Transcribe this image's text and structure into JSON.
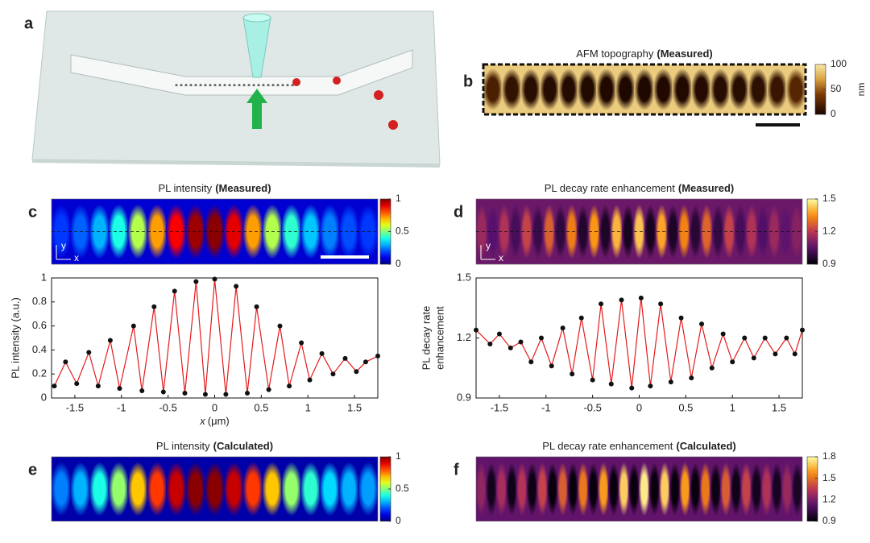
{
  "schematic": {
    "panel": "a"
  },
  "chart_data": [
    {
      "type": "heatmap",
      "panel": "b",
      "title": "AFM topography",
      "title_bold": "(Measured)",
      "colormap": "afmhot",
      "clim": [
        0,
        100
      ],
      "cticks": [
        0,
        50,
        100
      ],
      "colorbar_label": "nm",
      "background": 88,
      "values": [
        20,
        10,
        6,
        5,
        4,
        3,
        3,
        2,
        2,
        3,
        3,
        4,
        5,
        6,
        8,
        12,
        25
      ],
      "border": "dashed"
    },
    {
      "type": "heatmap",
      "panel": "c",
      "title": "PL intensity",
      "title_bold": "(Measured)",
      "colormap": "jet",
      "clim": [
        0,
        1
      ],
      "cticks": [
        0,
        0.5,
        1
      ],
      "background": 0.08,
      "values": [
        0.18,
        0.22,
        0.3,
        0.4,
        0.55,
        0.72,
        0.88,
        0.97,
        0.99,
        0.9,
        0.72,
        0.55,
        0.42,
        0.32,
        0.25,
        0.2,
        0.18
      ],
      "axes_labels": [
        "y",
        "x"
      ]
    },
    {
      "type": "line",
      "x": [
        -1.72,
        -1.6,
        -1.48,
        -1.35,
        -1.25,
        -1.12,
        -1.02,
        -0.87,
        -0.78,
        -0.65,
        -0.55,
        -0.43,
        -0.32,
        -0.2,
        -0.1,
        0,
        0.12,
        0.23,
        0.35,
        0.45,
        0.58,
        0.7,
        0.8,
        0.93,
        1.02,
        1.15,
        1.27,
        1.4,
        1.52,
        1.62,
        1.75
      ],
      "values": [
        0.1,
        0.3,
        0.12,
        0.38,
        0.1,
        0.48,
        0.08,
        0.6,
        0.06,
        0.76,
        0.05,
        0.89,
        0.04,
        0.97,
        0.03,
        0.99,
        0.03,
        0.93,
        0.04,
        0.76,
        0.07,
        0.6,
        0.1,
        0.46,
        0.15,
        0.37,
        0.2,
        0.33,
        0.22,
        0.3,
        0.35
      ],
      "color": "#e41a1c",
      "marker_color": "#111",
      "xlim": [
        -1.75,
        1.75
      ],
      "xticks": [
        -1.5,
        -1,
        -0.5,
        0,
        0.5,
        1,
        1.5
      ],
      "ylim": [
        0,
        1
      ],
      "yticks": [
        0,
        0.2,
        0.4,
        0.6,
        0.8,
        1
      ],
      "ylabel": [
        "PL intensity (a.u.)"
      ],
      "xlabel_var": "x",
      "xlabel_unit": "(μm)"
    },
    {
      "type": "heatmap",
      "panel": "d",
      "title": "PL decay rate enhancement",
      "title_bold": "(Measured)",
      "colormap": "inferno",
      "clim": [
        0.9,
        1.5
      ],
      "cticks": [
        0.9,
        1.2,
        1.5
      ],
      "background": 1.08,
      "values": [
        1.15,
        1.05,
        1.18,
        1.02,
        1.22,
        1.0,
        1.27,
        0.98,
        1.32,
        0.96,
        1.36,
        0.95,
        1.4,
        0.94,
        1.42,
        0.94,
        1.38,
        0.95,
        1.33,
        0.97,
        1.28,
        0.99,
        1.22,
        1.02,
        1.18,
        1.04,
        1.15,
        1.06,
        1.12
      ],
      "axes_labels": [
        "y",
        "x"
      ]
    },
    {
      "type": "line",
      "x": [
        -1.75,
        -1.6,
        -1.5,
        -1.38,
        -1.27,
        -1.16,
        -1.05,
        -0.94,
        -0.82,
        -0.72,
        -0.62,
        -0.5,
        -0.41,
        -0.3,
        -0.19,
        -0.08,
        0.02,
        0.12,
        0.23,
        0.34,
        0.45,
        0.56,
        0.67,
        0.78,
        0.9,
        1.0,
        1.13,
        1.23,
        1.35,
        1.46,
        1.58,
        1.67,
        1.75
      ],
      "values": [
        1.24,
        1.17,
        1.22,
        1.15,
        1.18,
        1.08,
        1.2,
        1.06,
        1.25,
        1.02,
        1.3,
        0.99,
        1.37,
        0.97,
        1.39,
        0.95,
        1.4,
        0.96,
        1.37,
        0.98,
        1.3,
        1.0,
        1.27,
        1.05,
        1.22,
        1.08,
        1.2,
        1.1,
        1.2,
        1.12,
        1.2,
        1.12,
        1.24
      ],
      "color": "#e41a1c",
      "marker_color": "#111",
      "xlim": [
        -1.75,
        1.75
      ],
      "xticks": [
        -1.5,
        -1,
        -0.5,
        0,
        0.5,
        1,
        1.5
      ],
      "ylim": [
        0.9,
        1.5
      ],
      "yticks": [
        0.9,
        1.2,
        1.5
      ],
      "ylabel": [
        "PL decay rate",
        "enhancement"
      ]
    },
    {
      "type": "heatmap",
      "panel": "e",
      "title": "PL intensity",
      "title_bold": "(Calculated)",
      "colormap": "jet",
      "clim": [
        0,
        1
      ],
      "cticks": [
        0,
        0.5,
        1
      ],
      "background": 0.04,
      "values": [
        0.25,
        0.3,
        0.4,
        0.52,
        0.68,
        0.82,
        0.93,
        0.99,
        0.99,
        0.93,
        0.82,
        0.68,
        0.52,
        0.42,
        0.34,
        0.3,
        0.28
      ]
    },
    {
      "type": "heatmap",
      "panel": "f",
      "title": "PL decay rate enhancement",
      "title_bold": "(Calculated)",
      "colormap": "inferno",
      "clim": [
        0.9,
        1.8
      ],
      "cticks": [
        0.9,
        1.2,
        1.5,
        1.8
      ],
      "background": 1.15,
      "values": [
        1.25,
        0.95,
        1.3,
        0.94,
        1.33,
        0.93,
        1.38,
        0.92,
        1.45,
        0.92,
        1.52,
        0.92,
        1.6,
        0.92,
        1.7,
        0.92,
        1.76,
        0.92,
        1.7,
        0.92,
        1.6,
        0.92,
        1.52,
        0.93,
        1.45,
        0.94,
        1.38,
        0.95,
        1.32,
        0.96,
        1.27,
        0.97
      ]
    }
  ]
}
